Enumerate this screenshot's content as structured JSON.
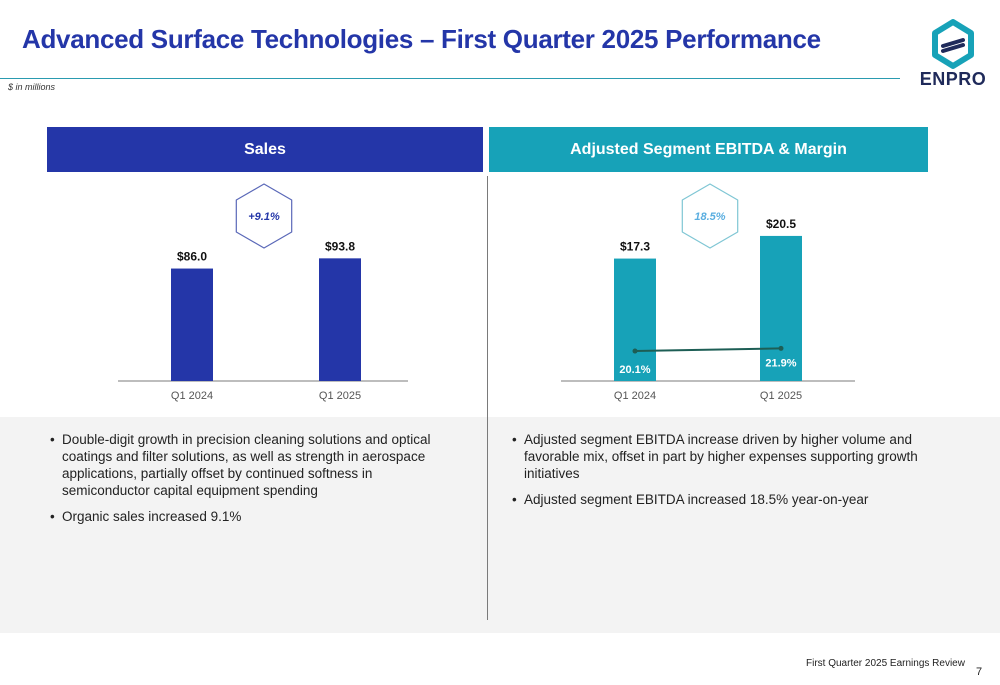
{
  "header": {
    "title": "Advanced Surface Technologies – First Quarter 2025 Performance",
    "units_note": "$ in millions",
    "logo_text": "ENPRO"
  },
  "sales_panel": {
    "heading": "Sales",
    "growth_badge": "+9.1%",
    "bullets": [
      "Double-digit growth in precision cleaning solutions and optical coatings and filter solutions, as well as strength in aerospace applications, partially offset by continued softness in semiconductor capital equipment spending",
      "Organic sales increased 9.1%"
    ]
  },
  "ebitda_panel": {
    "heading": "Adjusted Segment EBITDA & Margin",
    "growth_badge": "18.5%",
    "bullets": [
      "Adjusted segment EBITDA increase driven by higher volume and favorable mix, offset in part by higher expenses supporting growth initiatives",
      "Adjusted segment EBITDA increased 18.5% year-on-year"
    ]
  },
  "footer": {
    "text": "First Quarter 2025 Earnings Review",
    "page": "7"
  },
  "colors": {
    "sales_blue": "#2436a8",
    "teal": "#17a2b8",
    "margin_line": "#1d5e55",
    "badge_blue_text": "#2436a8",
    "badge_teal_text": "#5aaee0"
  },
  "chart_data": [
    {
      "type": "bar",
      "categories": [
        "Q1 2024",
        "Q1 2025"
      ],
      "values": [
        86.0,
        93.8
      ],
      "labels": [
        "$86.0",
        "$93.8"
      ],
      "ylim": [
        0,
        130
      ]
    },
    {
      "type": "bar",
      "categories": [
        "Q1 2024",
        "Q1 2025"
      ],
      "values": [
        17.3,
        20.5
      ],
      "labels": [
        "$17.3",
        "$20.5"
      ],
      "ylim": [
        0,
        26
      ],
      "line_series": {
        "values": [
          20.1,
          21.9
        ],
        "labels": [
          "20.1%",
          "21.9%"
        ],
        "ylim": [
          0,
          100
        ]
      }
    }
  ]
}
